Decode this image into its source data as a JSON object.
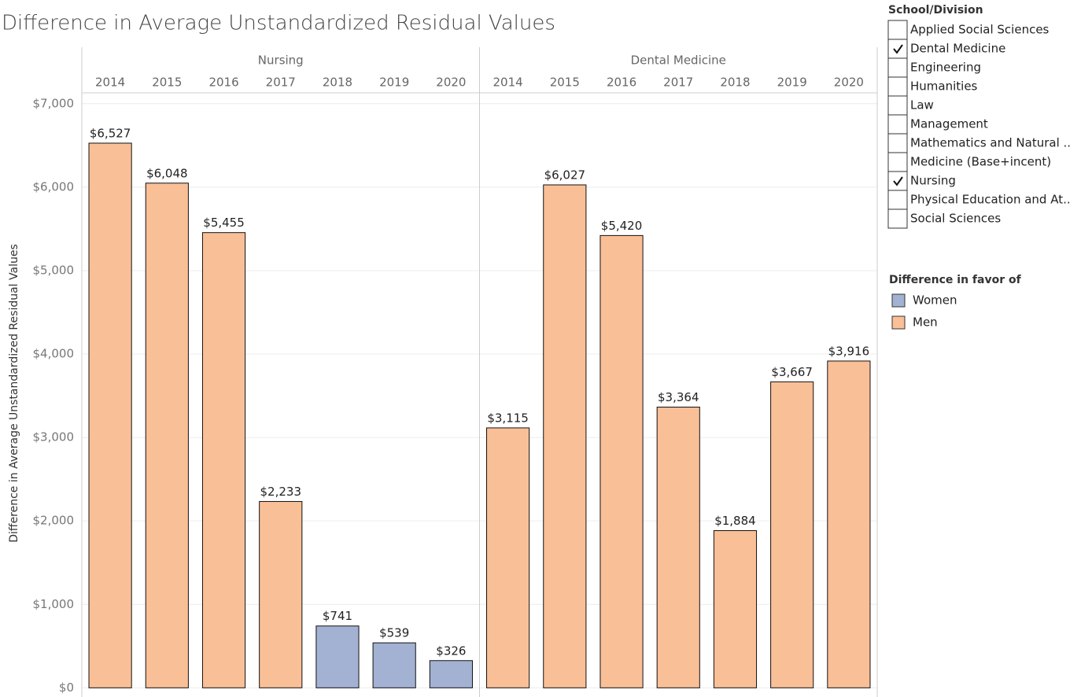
{
  "chart_data": {
    "type": "bar",
    "title": "Difference in Average Unstandardized Residual Values",
    "ylabel": "Difference in Average Unstandardized Residual Values",
    "ylim": [
      -110,
      7130
    ],
    "yticks": [
      {
        "value": 0,
        "label": "$0"
      },
      {
        "value": 1000,
        "label": "$1,000"
      },
      {
        "value": 2000,
        "label": "$2,000"
      },
      {
        "value": 3000,
        "label": "$3,000"
      },
      {
        "value": 4000,
        "label": "$4,000"
      },
      {
        "value": 5000,
        "label": "$5,000"
      },
      {
        "value": 6000,
        "label": "$6,000"
      },
      {
        "value": 7000,
        "label": "$7,000"
      }
    ],
    "grid": true,
    "legend_title": "Difference in favor of",
    "series": [
      {
        "name": "Women",
        "color": "#a3b2d3"
      },
      {
        "name": "Men",
        "color": "#f9bf97"
      }
    ],
    "panels": [
      {
        "name": "Nursing",
        "categories": [
          "2014",
          "2015",
          "2016",
          "2017",
          "2018",
          "2019",
          "2020"
        ],
        "series": [
          {
            "values": [
              null,
              null,
              null,
              null,
              741,
              539,
              326
            ],
            "value_labels": [
              null,
              null,
              null,
              null,
              "$741",
              "$539",
              "$326"
            ]
          },
          {
            "values": [
              6527,
              6048,
              5455,
              2233,
              null,
              null,
              null
            ],
            "value_labels": [
              "$6,527",
              "$6,048",
              "$5,455",
              "$2,233",
              null,
              null,
              null
            ]
          }
        ]
      },
      {
        "name": "Dental Medicine",
        "categories": [
          "2014",
          "2015",
          "2016",
          "2017",
          "2018",
          "2019",
          "2020"
        ],
        "series": [
          {
            "values": [
              null,
              null,
              null,
              null,
              null,
              null,
              null
            ],
            "value_labels": [
              null,
              null,
              null,
              null,
              null,
              null,
              null
            ]
          },
          {
            "values": [
              3115,
              6027,
              5420,
              3364,
              1884,
              3667,
              3916
            ],
            "value_labels": [
              "$3,115",
              "$6,027",
              "$5,420",
              "$3,364",
              "$1,884",
              "$3,667",
              "$3,916"
            ]
          }
        ]
      }
    ]
  },
  "filter": {
    "title": "School/Division",
    "items": [
      {
        "label": "Applied Social Sciences",
        "checked": false
      },
      {
        "label": "Dental Medicine",
        "checked": true
      },
      {
        "label": "Engineering",
        "checked": false
      },
      {
        "label": "Humanities",
        "checked": false
      },
      {
        "label": "Law",
        "checked": false
      },
      {
        "label": "Management",
        "checked": false
      },
      {
        "label": "Mathematics and Natural ..",
        "checked": false
      },
      {
        "label": "Medicine (Base+incent)",
        "checked": false
      },
      {
        "label": "Nursing",
        "checked": true
      },
      {
        "label": "Physical Education and At..",
        "checked": false
      },
      {
        "label": "Social Sciences",
        "checked": false
      }
    ]
  }
}
